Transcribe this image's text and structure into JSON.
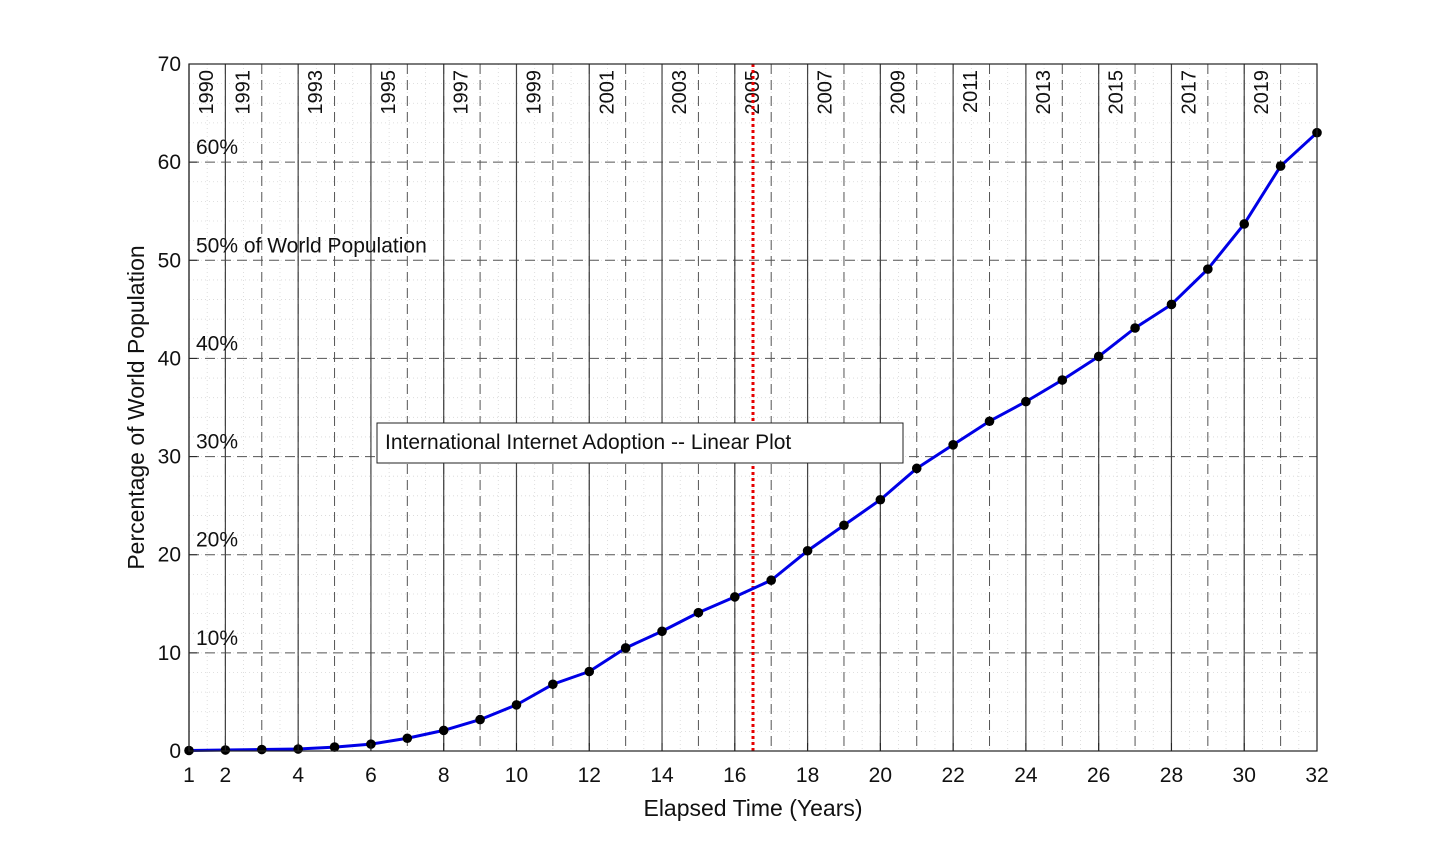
{
  "chart_data": {
    "type": "line",
    "title": "International Internet Adoption -- Linear Plot",
    "xlabel": "Elapsed Time (Years)",
    "ylabel": "Percentage of World Population",
    "xlim": [
      1,
      32
    ],
    "ylim": [
      0,
      70
    ],
    "x_ticks": [
      1,
      2,
      4,
      6,
      8,
      10,
      12,
      14,
      16,
      18,
      20,
      22,
      24,
      26,
      28,
      30,
      32
    ],
    "y_ticks": [
      0,
      10,
      20,
      30,
      40,
      50,
      60,
      70
    ],
    "grid": true,
    "series": [
      {
        "x": [
          1,
          2,
          3,
          4,
          5,
          6,
          7,
          8,
          9,
          10,
          11,
          12,
          13,
          14,
          15,
          16,
          17,
          18,
          19,
          20,
          21,
          22,
          23,
          24,
          25,
          26,
          27,
          28,
          29,
          30,
          31,
          32
        ],
        "values": [
          0.05,
          0.1,
          0.15,
          0.2,
          0.4,
          0.7,
          1.3,
          2.1,
          3.2,
          4.7,
          6.8,
          8.1,
          10.5,
          12.2,
          14.1,
          15.7,
          17.4,
          20.4,
          23.0,
          25.6,
          28.8,
          31.2,
          33.6,
          35.6,
          37.8,
          40.2,
          43.1,
          45.5,
          49.1,
          53.7,
          59.6,
          63.0
        ],
        "color": "#0000e6",
        "marker_color": "#000000"
      }
    ],
    "year_markers": [
      {
        "label": "1990",
        "x": 1
      },
      {
        "label": "1991",
        "x": 2
      },
      {
        "label": "1993",
        "x": 4
      },
      {
        "label": "1995",
        "x": 6
      },
      {
        "label": "1997",
        "x": 8
      },
      {
        "label": "1999",
        "x": 10
      },
      {
        "label": "2001",
        "x": 12
      },
      {
        "label": "2003",
        "x": 14
      },
      {
        "label": "2005",
        "x": 16
      },
      {
        "label": "2007",
        "x": 18
      },
      {
        "label": "2009",
        "x": 20
      },
      {
        "label": "2011",
        "x": 22
      },
      {
        "label": "2013",
        "x": 24
      },
      {
        "label": "2015",
        "x": 26
      },
      {
        "label": "2017",
        "x": 28
      },
      {
        "label": "2019",
        "x": 30
      }
    ],
    "percent_annotations": [
      {
        "label": "60%",
        "y": 60
      },
      {
        "label": "50% of World Population",
        "y": 50
      },
      {
        "label": "40%",
        "y": 40
      },
      {
        "label": "30%",
        "y": 30
      },
      {
        "label": "20%",
        "y": 20
      },
      {
        "label": "10%",
        "y": 10
      }
    ],
    "reference_line": {
      "x": 16.5,
      "color": "#e60000"
    }
  }
}
